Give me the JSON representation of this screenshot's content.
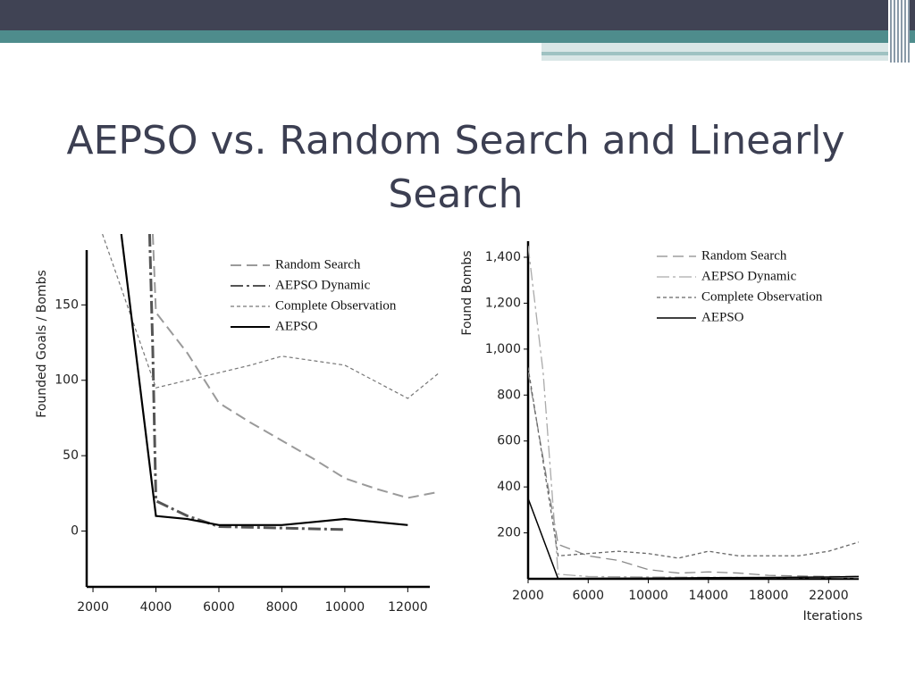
{
  "slide": {
    "title": "AEPSO vs. Random Search and Linearly Search"
  },
  "chart_data": [
    {
      "type": "line",
      "y_label": "Founded Goals / Bombs",
      "xlim": [
        1800,
        12700
      ],
      "ylim": [
        -37,
        197
      ],
      "xticks": [
        2000,
        4000,
        6000,
        8000,
        10000,
        12000
      ],
      "yticks": [
        0,
        50,
        100,
        150
      ],
      "legend": "upper right",
      "series": [
        {
          "name": "Random Search",
          "color": "#9a9a9a",
          "dash": "long-dash",
          "x": [
            3900,
            4000,
            5000,
            6000,
            7000,
            8000,
            9000,
            10000,
            11000,
            12000,
            13000
          ],
          "values": [
            197,
            145,
            118,
            85,
            72,
            60,
            48,
            35,
            28,
            22,
            26
          ]
        },
        {
          "name": "AEPSO Dynamic",
          "color": "#555555",
          "dash": "dash-dot",
          "x": [
            3800,
            3900,
            4000,
            5000,
            6000,
            8000,
            10000
          ],
          "values": [
            197,
            120,
            20,
            10,
            3,
            2,
            1
          ]
        },
        {
          "name": "Complete Observation",
          "color": "#777777",
          "dash": "dotted",
          "x": [
            2300,
            4000,
            5000,
            6000,
            7000,
            8000,
            10000,
            12000,
            13000
          ],
          "values": [
            197,
            95,
            100,
            105,
            110,
            116,
            110,
            88,
            105
          ]
        },
        {
          "name": "AEPSO",
          "color": "#000000",
          "dash": "solid",
          "x": [
            2900,
            4000,
            5000,
            6000,
            8000,
            9000,
            10000,
            12000
          ],
          "values": [
            197,
            10,
            8,
            4,
            4,
            6,
            8,
            4
          ]
        }
      ]
    },
    {
      "type": "line",
      "x_label": "Iterations",
      "y_label": "Found Bombs",
      "xlim": [
        2000,
        24000
      ],
      "ylim": [
        0,
        1470
      ],
      "xticks": [
        2000,
        6000,
        10000,
        14000,
        18000,
        22000
      ],
      "yticks": [
        200,
        400,
        600,
        800,
        {
          "value": 1000,
          "label": "1,000"
        },
        {
          "value": 1200,
          "label": "1,200"
        },
        {
          "value": 1400,
          "label": "1,400"
        }
      ],
      "legend": "upper right",
      "series": [
        {
          "name": "Random Search",
          "color": "#8a8a8a",
          "dash": "long-dash",
          "x": [
            2000,
            4000,
            6000,
            8000,
            10000,
            12000,
            14000,
            16000,
            18000,
            22000,
            24000
          ],
          "values": [
            900,
            150,
            100,
            80,
            40,
            25,
            30,
            25,
            15,
            10,
            10
          ]
        },
        {
          "name": "AEPSO Dynamic",
          "color": "#aaaaaa",
          "dash": "dash-dot",
          "x": [
            2000,
            3000,
            4000,
            6000,
            10000,
            16000,
            24000
          ],
          "values": [
            1450,
            900,
            20,
            10,
            8,
            6,
            5
          ]
        },
        {
          "name": "Complete Observation",
          "color": "#666666",
          "dash": "dotted",
          "x": [
            2000,
            4000,
            6000,
            8000,
            10000,
            12000,
            14000,
            16000,
            20000,
            22000,
            24000
          ],
          "values": [
            920,
            100,
            110,
            120,
            110,
            90,
            120,
            100,
            100,
            120,
            160
          ]
        },
        {
          "name": "AEPSO",
          "color": "#000000",
          "dash": "solid",
          "x": [
            2000,
            4000,
            6000,
            10000,
            14000,
            18000,
            22000,
            24000
          ],
          "values": [
            350,
            0,
            2,
            3,
            5,
            6,
            8,
            10
          ]
        }
      ]
    }
  ]
}
